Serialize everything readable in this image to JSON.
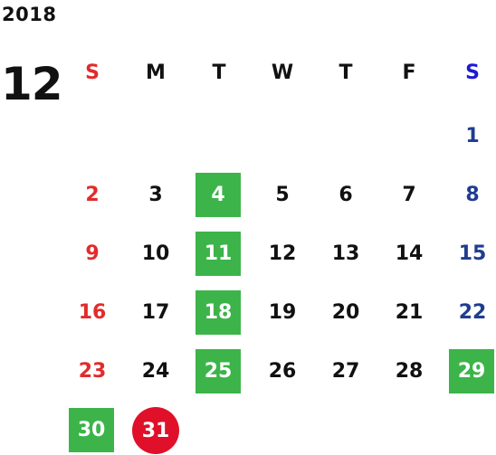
{
  "year": "2018",
  "month": "12",
  "weekdays": [
    "S",
    "M",
    "T",
    "W",
    "T",
    "F",
    "S"
  ],
  "colors": {
    "sunday": "#e22b2b",
    "saturday_header": "#1a1ad6",
    "saturday": "#1f3d8f",
    "highlight": "#3cb44a",
    "today": "#e0102a"
  },
  "highlighted_days": [
    "4",
    "11",
    "18",
    "25",
    "29",
    "30"
  ],
  "today": "31",
  "weeks": [
    [
      "",
      "",
      "",
      "",
      "",
      "",
      "1"
    ],
    [
      "2",
      "3",
      "4",
      "5",
      "6",
      "7",
      "8"
    ],
    [
      "9",
      "10",
      "11",
      "12",
      "13",
      "14",
      "15"
    ],
    [
      "16",
      "17",
      "18",
      "19",
      "20",
      "21",
      "22"
    ],
    [
      "23",
      "24",
      "25",
      "26",
      "27",
      "28",
      "29"
    ],
    [
      "30",
      "31",
      "",
      "",
      "",
      "",
      ""
    ]
  ]
}
